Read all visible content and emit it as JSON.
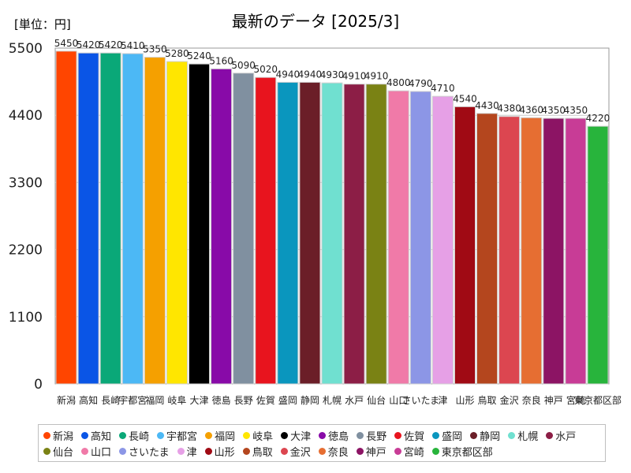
{
  "chart_data": {
    "type": "bar",
    "title": "最新のデータ [2025/3]",
    "unit_label": "[単位：円]",
    "xlabel": "",
    "ylabel": "",
    "ylim": [
      0,
      5500
    ],
    "yticks": [
      "0",
      "1100",
      "2200",
      "3300",
      "4400",
      "5500"
    ],
    "categories": [
      "新潟",
      "高知",
      "長崎",
      "宇都宮",
      "福岡",
      "岐阜",
      "大津",
      "徳島",
      "長野",
      "佐賀",
      "盛岡",
      "静岡",
      "札幌",
      "水戸",
      "仙台",
      "山口",
      "さいたま",
      "津",
      "山形",
      "鳥取",
      "金沢",
      "奈良",
      "神戸",
      "宮崎",
      "東京都区部"
    ],
    "tick_labels": [
      "新潟",
      "高知",
      "長崎",
      "宇都宮",
      "福岡",
      "岐阜",
      "大津",
      "徳島",
      "長野",
      "佐賀",
      "盛岡",
      "静岡",
      "札幌",
      "水戸",
      "仙台",
      "山口",
      "さいたま",
      "津",
      "山形",
      "鳥取",
      "金沢",
      "奈良",
      "神戸",
      "宮崎",
      "東京都区部"
    ],
    "values": [
      5450,
      5420,
      5420,
      5410,
      5350,
      5280,
      5240,
      5160,
      5090,
      5020,
      4940,
      4940,
      4930,
      4910,
      4910,
      4800,
      4790,
      4710,
      4540,
      4430,
      4380,
      4360,
      4350,
      4350,
      4220
    ],
    "value_labels": [
      "5450",
      "5420",
      "5420",
      "5410",
      "5350",
      "5280",
      "5240",
      "5160",
      "5090",
      "5020",
      "4940",
      "4940",
      "4930",
      "4910",
      "4910",
      "4800",
      "4790",
      "4710",
      "4540",
      "4430",
      "4380",
      "4360",
      "4350",
      "4350",
      "4220"
    ],
    "colors": [
      "#ff4500",
      "#0a55e6",
      "#0aa878",
      "#4cb8f5",
      "#f5a000",
      "#ffe600",
      "#000000",
      "#880aa8",
      "#8090a0",
      "#e8141e",
      "#0a96be",
      "#6b1e28",
      "#70e0d0",
      "#8c1e46",
      "#7a8214",
      "#f07aa8",
      "#8c96e6",
      "#e6a0e6",
      "#a00a14",
      "#b4461e",
      "#dc4650",
      "#e66e32",
      "#8c1464",
      "#c83c96",
      "#28b43c"
    ],
    "grid": true,
    "legend_position": "bottom"
  }
}
